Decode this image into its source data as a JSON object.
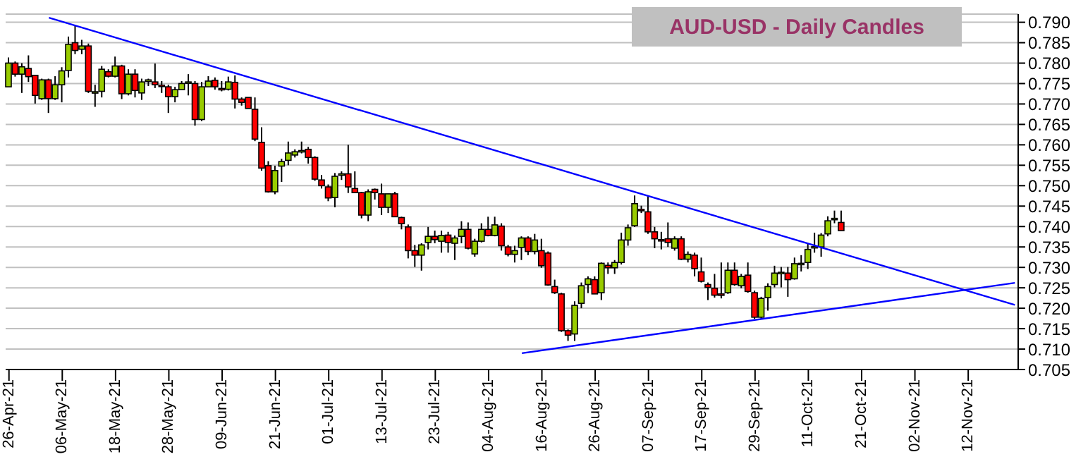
{
  "chart_data": {
    "type": "candlestick",
    "title": "AUD-USD - Daily Candles",
    "categories": [
      "26-Apr-21",
      null,
      null,
      null,
      null,
      null,
      null,
      null,
      "06-May-21",
      null,
      null,
      null,
      null,
      null,
      null,
      null,
      "18-May-21",
      null,
      null,
      null,
      null,
      null,
      null,
      null,
      "28-May-21",
      null,
      null,
      null,
      null,
      null,
      null,
      null,
      "09-Jun-21",
      null,
      null,
      null,
      null,
      null,
      null,
      null,
      "21-Jun-21",
      null,
      null,
      null,
      null,
      null,
      null,
      null,
      "01-Jul-21",
      null,
      null,
      null,
      null,
      null,
      null,
      null,
      "13-Jul-21",
      null,
      null,
      null,
      null,
      null,
      null,
      null,
      "23-Jul-21",
      null,
      null,
      null,
      null,
      null,
      null,
      null,
      "04-Aug-21",
      null,
      null,
      null,
      null,
      null,
      null,
      null,
      "16-Aug-21",
      null,
      null,
      null,
      null,
      null,
      null,
      null,
      "26-Aug-21",
      null,
      null,
      null,
      null,
      null,
      null,
      null,
      "07-Sep-21",
      null,
      null,
      null,
      null,
      null,
      null,
      null,
      "17-Sep-21",
      null,
      null,
      null,
      null,
      null,
      null,
      null,
      "29-Sep-21",
      null,
      null,
      null,
      null,
      null,
      null,
      null,
      "11-Oct-21",
      null,
      null,
      null,
      null,
      null,
      null,
      null,
      "21-Oct-21",
      null,
      null,
      null,
      null,
      null,
      null,
      null,
      "02-Nov-21",
      null,
      null,
      null,
      null,
      null,
      null,
      null,
      "12-Nov-21",
      null,
      null,
      null,
      null,
      null,
      null,
      null
    ],
    "ohlc": [
      [
        0.7742,
        0.7814,
        0.7742,
        0.78
      ],
      [
        0.78,
        0.7804,
        0.7767,
        0.7773
      ],
      [
        0.7773,
        0.78,
        0.7727,
        0.7791
      ],
      [
        0.7787,
        0.7819,
        0.7754,
        0.7767
      ],
      [
        0.777,
        0.777,
        0.7701,
        0.7721
      ],
      [
        0.7713,
        0.7762,
        0.771,
        0.7759
      ],
      [
        0.7759,
        0.7762,
        0.7678,
        0.7713
      ],
      [
        0.7713,
        0.7768,
        0.771,
        0.7747
      ],
      [
        0.7747,
        0.779,
        0.7704,
        0.7781
      ],
      [
        0.7782,
        0.7865,
        0.7765,
        0.7846
      ],
      [
        0.785,
        0.7892,
        0.7822,
        0.7831
      ],
      [
        0.7834,
        0.7857,
        0.7822,
        0.7842
      ],
      [
        0.7842,
        0.7848,
        0.7727,
        0.7731
      ],
      [
        0.7729,
        0.7747,
        0.7693,
        0.773
      ],
      [
        0.7731,
        0.7793,
        0.7716,
        0.7785
      ],
      [
        0.7779,
        0.7785,
        0.7765,
        0.7768
      ],
      [
        0.7768,
        0.7816,
        0.7765,
        0.7793
      ],
      [
        0.7793,
        0.7796,
        0.7712,
        0.7725
      ],
      [
        0.7725,
        0.7785,
        0.7721,
        0.7773
      ],
      [
        0.7773,
        0.7785,
        0.7716,
        0.7733
      ],
      [
        0.7727,
        0.7762,
        0.771,
        0.7754
      ],
      [
        0.7755,
        0.7762,
        0.7744,
        0.7759
      ],
      [
        0.7754,
        0.7799,
        0.7739,
        0.7747
      ],
      [
        0.7746,
        0.7756,
        0.7727,
        0.7744
      ],
      [
        0.7742,
        0.7747,
        0.7678,
        0.7718
      ],
      [
        0.7718,
        0.7742,
        0.7704,
        0.7735
      ],
      [
        0.7735,
        0.7756,
        0.7735,
        0.775
      ],
      [
        0.7753,
        0.7773,
        0.7721,
        0.7754
      ],
      [
        0.775,
        0.7756,
        0.7647,
        0.7662
      ],
      [
        0.7662,
        0.7754,
        0.7658,
        0.7742
      ],
      [
        0.7742,
        0.7768,
        0.7742,
        0.7756
      ],
      [
        0.7758,
        0.7765,
        0.7735,
        0.7742
      ],
      [
        0.7738,
        0.7756,
        0.7731,
        0.7737
      ],
      [
        0.7736,
        0.7767,
        0.7733,
        0.7754
      ],
      [
        0.7753,
        0.777,
        0.7689,
        0.7712
      ],
      [
        0.7712,
        0.7716,
        0.7696,
        0.7704
      ],
      [
        0.7716,
        0.7716,
        0.7689,
        0.7689
      ],
      [
        0.7687,
        0.7716,
        0.7609,
        0.7614
      ],
      [
        0.7606,
        0.7643,
        0.7537,
        0.7543
      ],
      [
        0.7549,
        0.756,
        0.7483,
        0.7485
      ],
      [
        0.7485,
        0.7549,
        0.7479,
        0.7537
      ],
      [
        0.7548,
        0.7566,
        0.7509,
        0.7559
      ],
      [
        0.7562,
        0.7608,
        0.755,
        0.758
      ],
      [
        0.7575,
        0.7589,
        0.7569,
        0.7583
      ],
      [
        0.7584,
        0.7608,
        0.7579,
        0.7586
      ],
      [
        0.7589,
        0.7595,
        0.7554,
        0.7569
      ],
      [
        0.7569,
        0.7572,
        0.7512,
        0.7516
      ],
      [
        0.7514,
        0.7526,
        0.7493,
        0.75
      ],
      [
        0.7497,
        0.7503,
        0.7462,
        0.747
      ],
      [
        0.7471,
        0.7531,
        0.7447,
        0.7523
      ],
      [
        0.7528,
        0.7535,
        0.7514,
        0.7529
      ],
      [
        0.7529,
        0.76,
        0.7482,
        0.7497
      ],
      [
        0.7493,
        0.7535,
        0.7482,
        0.7483
      ],
      [
        0.7483,
        0.7485,
        0.742,
        0.7428
      ],
      [
        0.7428,
        0.7491,
        0.7413,
        0.7485
      ],
      [
        0.7491,
        0.7493,
        0.7466,
        0.7483
      ],
      [
        0.748,
        0.7505,
        0.7428,
        0.7447
      ],
      [
        0.7447,
        0.748,
        0.7433,
        0.748
      ],
      [
        0.748,
        0.7485,
        0.7424,
        0.7424
      ],
      [
        0.7422,
        0.7424,
        0.7393,
        0.7407
      ],
      [
        0.7399,
        0.7405,
        0.7322,
        0.7341
      ],
      [
        0.7341,
        0.7355,
        0.7301,
        0.733
      ],
      [
        0.733,
        0.7359,
        0.7292,
        0.7355
      ],
      [
        0.7361,
        0.7399,
        0.7344,
        0.7376
      ],
      [
        0.7376,
        0.739,
        0.7359,
        0.7368
      ],
      [
        0.7364,
        0.739,
        0.7336,
        0.7378
      ],
      [
        0.7379,
        0.7387,
        0.7336,
        0.7361
      ],
      [
        0.7359,
        0.7378,
        0.7318,
        0.7372
      ],
      [
        0.7376,
        0.7413,
        0.7359,
        0.7393
      ],
      [
        0.7393,
        0.741,
        0.7344,
        0.7347
      ],
      [
        0.7333,
        0.737,
        0.7326,
        0.7364
      ],
      [
        0.7364,
        0.7408,
        0.7361,
        0.7393
      ],
      [
        0.7393,
        0.7424,
        0.7376,
        0.7378
      ],
      [
        0.7378,
        0.7424,
        0.7376,
        0.7404
      ],
      [
        0.7401,
        0.7408,
        0.7341,
        0.7353
      ],
      [
        0.735,
        0.7355,
        0.7327,
        0.7332
      ],
      [
        0.7332,
        0.7353,
        0.7312,
        0.7341
      ],
      [
        0.7349,
        0.7376,
        0.7318,
        0.7372
      ],
      [
        0.7372,
        0.7376,
        0.733,
        0.7339
      ],
      [
        0.7339,
        0.7382,
        0.7332,
        0.7367
      ],
      [
        0.7341,
        0.737,
        0.7299,
        0.7304
      ],
      [
        0.7335,
        0.7339,
        0.7255,
        0.7257
      ],
      [
        0.7253,
        0.727,
        0.7235,
        0.7238
      ],
      [
        0.7235,
        0.7238,
        0.7142,
        0.7145
      ],
      [
        0.7145,
        0.7148,
        0.712,
        0.7134
      ],
      [
        0.7137,
        0.7217,
        0.712,
        0.7207
      ],
      [
        0.7212,
        0.7263,
        0.72,
        0.7255
      ],
      [
        0.7258,
        0.7278,
        0.7237,
        0.7272
      ],
      [
        0.727,
        0.7278,
        0.7235,
        0.7235
      ],
      [
        0.7238,
        0.7312,
        0.722,
        0.731
      ],
      [
        0.7305,
        0.7312,
        0.7284,
        0.7299
      ],
      [
        0.7299,
        0.7318,
        0.7284,
        0.7312
      ],
      [
        0.7312,
        0.7385,
        0.7307,
        0.7367
      ],
      [
        0.7367,
        0.7405,
        0.7353,
        0.7397
      ],
      [
        0.7402,
        0.7476,
        0.7399,
        0.7456
      ],
      [
        0.7442,
        0.7451,
        0.7433,
        0.7441
      ],
      [
        0.7436,
        0.7474,
        0.7382,
        0.7387
      ],
      [
        0.7387,
        0.7399,
        0.7347,
        0.737
      ],
      [
        0.7368,
        0.7387,
        0.7344,
        0.7367
      ],
      [
        0.737,
        0.741,
        0.735,
        0.7361
      ],
      [
        0.7347,
        0.7376,
        0.7341,
        0.737
      ],
      [
        0.737,
        0.7376,
        0.7318,
        0.732
      ],
      [
        0.732,
        0.7339,
        0.7312,
        0.7332
      ],
      [
        0.733,
        0.7336,
        0.7278,
        0.7297
      ],
      [
        0.7289,
        0.7324,
        0.7263,
        0.7266
      ],
      [
        0.7258,
        0.7263,
        0.722,
        0.7251
      ],
      [
        0.7249,
        0.7284,
        0.7226,
        0.7232
      ],
      [
        0.7235,
        0.7312,
        0.7224,
        0.7234
      ],
      [
        0.7238,
        0.7312,
        0.7235,
        0.7293
      ],
      [
        0.7293,
        0.7312,
        0.7255,
        0.7258
      ],
      [
        0.7255,
        0.7284,
        0.7249,
        0.7278
      ],
      [
        0.7281,
        0.7312,
        0.7238,
        0.7241
      ],
      [
        0.7238,
        0.7243,
        0.7174,
        0.7178
      ],
      [
        0.7178,
        0.7228,
        0.7174,
        0.7224
      ],
      [
        0.7226,
        0.7261,
        0.7194,
        0.7253
      ],
      [
        0.7258,
        0.7304,
        0.7251,
        0.7286
      ],
      [
        0.7287,
        0.7301,
        0.7251,
        0.7288
      ],
      [
        0.7286,
        0.7301,
        0.7228,
        0.727
      ],
      [
        0.7272,
        0.7324,
        0.727,
        0.7309
      ],
      [
        0.7309,
        0.733,
        0.729,
        0.731
      ],
      [
        0.7312,
        0.7359,
        0.7296,
        0.7344
      ],
      [
        0.735,
        0.7385,
        0.7336,
        0.7351
      ],
      [
        0.735,
        0.7384,
        0.7326,
        0.7379
      ],
      [
        0.7382,
        0.7425,
        0.7376,
        0.7414
      ],
      [
        0.7419,
        0.7439,
        0.7408,
        0.742
      ],
      [
        0.741,
        0.7439,
        0.739,
        0.739
      ],
      null,
      null,
      null,
      null,
      null,
      null,
      null,
      null,
      null,
      null,
      null,
      null,
      null,
      null,
      null,
      null,
      null,
      null,
      null,
      null,
      null,
      null,
      null,
      null,
      null,
      null
    ],
    "colors": [
      "#99cc00",
      "#ff0000",
      "#99cc00",
      "#ff0000",
      "#ff0000",
      "#99cc00",
      "#ff0000",
      "#99cc00",
      "#99cc00",
      "#99cc00",
      "#ff0000",
      "#99cc00",
      "#ff0000",
      "#99cc00",
      "#99cc00",
      "#ff0000",
      "#99cc00",
      "#ff0000",
      "#99cc00",
      "#ff0000",
      "#99cc00",
      "#99cc00",
      "#ff0000",
      "#ff0000",
      "#ff0000",
      "#99cc00",
      "#99cc00",
      "#99cc00",
      "#ff0000",
      "#99cc00",
      "#99cc00",
      "#ff0000",
      "#ff0000",
      "#99cc00",
      "#ff0000",
      "#ff0000",
      "#ff0000",
      "#ff0000",
      "#ff0000",
      "#ff0000",
      "#99cc00",
      "#99cc00",
      "#99cc00",
      "#99cc00",
      "#99cc00",
      "#ff0000",
      "#ff0000",
      "#ff0000",
      "#ff0000",
      "#99cc00",
      "#99cc00",
      "#ff0000",
      "#ff0000",
      "#ff0000",
      "#99cc00",
      "#ff0000",
      "#ff0000",
      "#99cc00",
      "#ff0000",
      "#ff0000",
      "#ff0000",
      "#ff0000",
      "#99cc00",
      "#99cc00",
      "#ff0000",
      "#99cc00",
      "#ff0000",
      "#99cc00",
      "#99cc00",
      "#ff0000",
      "#99cc00",
      "#99cc00",
      "#ff0000",
      "#99cc00",
      "#ff0000",
      "#ff0000",
      "#99cc00",
      "#99cc00",
      "#ff0000",
      "#99cc00",
      "#ff0000",
      "#ff0000",
      "#ff0000",
      "#ff0000",
      "#ff0000",
      "#99cc00",
      "#99cc00",
      "#99cc00",
      "#ff0000",
      "#99cc00",
      "#ff0000",
      "#99cc00",
      "#99cc00",
      "#99cc00",
      "#99cc00",
      "#ff0000",
      "#ff0000",
      "#ff0000",
      "#ff0000",
      "#ff0000",
      "#99cc00",
      "#ff0000",
      "#99cc00",
      "#ff0000",
      "#ff0000",
      "#ff0000",
      "#ff0000",
      "#ff0000",
      "#99cc00",
      "#ff0000",
      "#99cc00",
      "#ff0000",
      "#ff0000",
      "#99cc00",
      "#99cc00",
      "#99cc00",
      "#99cc00",
      "#ff0000",
      "#99cc00",
      "#99cc00",
      "#99cc00",
      "#99cc00",
      "#99cc00",
      "#99cc00",
      "#99cc00",
      "#ff0000",
      null,
      null,
      null,
      null,
      null,
      null,
      null,
      null,
      null,
      null,
      null,
      null,
      null,
      null,
      null,
      null,
      null,
      null,
      null,
      null,
      null,
      null,
      null,
      null,
      null,
      null
    ],
    "series": [
      {
        "type": "line",
        "color": "#0000ff",
        "values": [
          null,
          null,
          null,
          null,
          null,
          null,
          0.7911,
          null,
          null,
          null,
          null,
          null,
          null,
          null,
          null,
          null,
          null,
          null,
          null,
          null,
          null,
          null,
          null,
          null,
          null,
          null,
          null,
          null,
          null,
          null,
          null,
          null,
          null,
          null,
          null,
          null,
          null,
          null,
          null,
          null,
          null,
          null,
          null,
          null,
          null,
          null,
          null,
          null,
          null,
          null,
          null,
          null,
          null,
          null,
          null,
          null,
          null,
          null,
          null,
          null,
          null,
          null,
          null,
          null,
          null,
          null,
          null,
          null,
          null,
          null,
          null,
          null,
          null,
          null,
          null,
          null,
          null,
          null,
          null,
          null,
          null,
          null,
          null,
          null,
          null,
          null,
          null,
          null,
          null,
          null,
          null,
          null,
          null,
          null,
          null,
          null,
          null,
          null,
          null,
          null,
          null,
          null,
          null,
          null,
          null,
          null,
          null,
          null,
          null,
          null,
          null,
          null,
          null,
          null,
          null,
          null,
          null,
          null,
          null,
          null,
          null,
          null,
          null,
          null,
          null,
          null,
          null,
          null,
          null,
          null,
          null,
          null,
          null,
          null,
          null,
          null,
          null,
          null,
          null,
          null,
          null,
          null,
          null,
          null,
          null,
          null,
          null,
          null,
          null,
          null,
          null,
          0.7208
        ]
      },
      {
        "type": "line",
        "color": "#0000ff",
        "values": [
          null,
          null,
          null,
          null,
          null,
          null,
          null,
          null,
          null,
          null,
          null,
          null,
          null,
          null,
          null,
          null,
          null,
          null,
          null,
          null,
          null,
          null,
          null,
          null,
          null,
          null,
          null,
          null,
          null,
          null,
          null,
          null,
          null,
          null,
          null,
          null,
          null,
          null,
          null,
          null,
          null,
          null,
          null,
          null,
          null,
          null,
          null,
          null,
          null,
          null,
          null,
          null,
          null,
          null,
          null,
          null,
          null,
          null,
          null,
          null,
          null,
          null,
          null,
          null,
          null,
          null,
          null,
          null,
          null,
          null,
          null,
          null,
          null,
          null,
          null,
          null,
          null,
          0.709,
          null,
          null,
          null,
          null,
          null,
          null,
          null,
          null,
          null,
          null,
          null,
          null,
          null,
          null,
          null,
          null,
          null,
          null,
          null,
          null,
          null,
          null,
          null,
          null,
          null,
          null,
          null,
          null,
          null,
          null,
          null,
          null,
          null,
          null,
          null,
          null,
          null,
          null,
          null,
          null,
          null,
          null,
          null,
          null,
          null,
          null,
          null,
          null,
          null,
          null,
          null,
          null,
          null,
          null,
          null,
          null,
          null,
          null,
          null,
          null,
          null,
          null,
          null,
          null,
          null,
          null,
          null,
          null,
          null,
          null,
          null,
          null,
          null,
          0.7262
        ]
      }
    ],
    "ylim": [
      0.705,
      0.792
    ],
    "yticks": [
      {
        "value": 0.705,
        "label": "0.705"
      },
      {
        "value": 0.71,
        "label": "0.710"
      },
      {
        "value": 0.715,
        "label": "0.715"
      },
      {
        "value": 0.72,
        "label": "0.720"
      },
      {
        "value": 0.725,
        "label": "0.725"
      },
      {
        "value": 0.73,
        "label": "0.730"
      },
      {
        "value": 0.735,
        "label": "0.735"
      },
      {
        "value": 0.74,
        "label": "0.740"
      },
      {
        "value": 0.745,
        "label": "0.745"
      },
      {
        "value": 0.75,
        "label": "0.750"
      },
      {
        "value": 0.755,
        "label": "0.755"
      },
      {
        "value": 0.76,
        "label": "0.760"
      },
      {
        "value": 0.765,
        "label": "0.765"
      },
      {
        "value": 0.77,
        "label": "0.770"
      },
      {
        "value": 0.775,
        "label": "0.775"
      },
      {
        "value": 0.78,
        "label": "0.780"
      },
      {
        "value": 0.785,
        "label": "0.785"
      },
      {
        "value": 0.79,
        "label": "0.790"
      }
    ],
    "grid": "y",
    "legend": false
  }
}
